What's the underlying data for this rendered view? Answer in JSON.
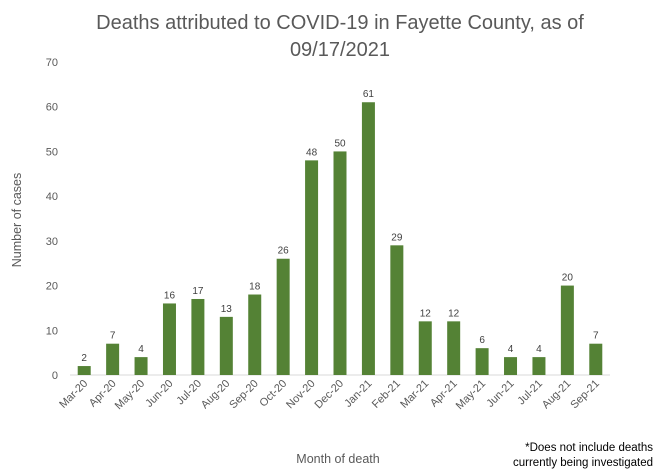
{
  "chart_data": {
    "type": "bar",
    "title_line1": "Deaths attributed to COVID-19 in Fayette County, as of",
    "title_line2": "09/17/2021",
    "xlabel": "Month of death",
    "ylabel": "Number of cases",
    "ylim": [
      0,
      70
    ],
    "yticks": [
      0,
      10,
      20,
      30,
      40,
      50,
      60,
      70
    ],
    "grid": false,
    "legend": "none",
    "bar_color": "#548235",
    "categories": [
      "Mar-20",
      "Apr-20",
      "May-20",
      "Jun-20",
      "Jul-20",
      "Aug-20",
      "Sep-20",
      "Oct-20",
      "Nov-20",
      "Dec-20",
      "Jan-21",
      "Feb-21",
      "Mar-21",
      "Apr-21",
      "May-21",
      "Jun-21",
      "Jul-21",
      "Aug-21",
      "Sep-21"
    ],
    "values": [
      2,
      7,
      4,
      16,
      17,
      13,
      18,
      26,
      48,
      50,
      61,
      29,
      12,
      12,
      6,
      4,
      4,
      20,
      7
    ],
    "note_line1": "*Does not include deaths",
    "note_line2": "currently being investigated"
  }
}
